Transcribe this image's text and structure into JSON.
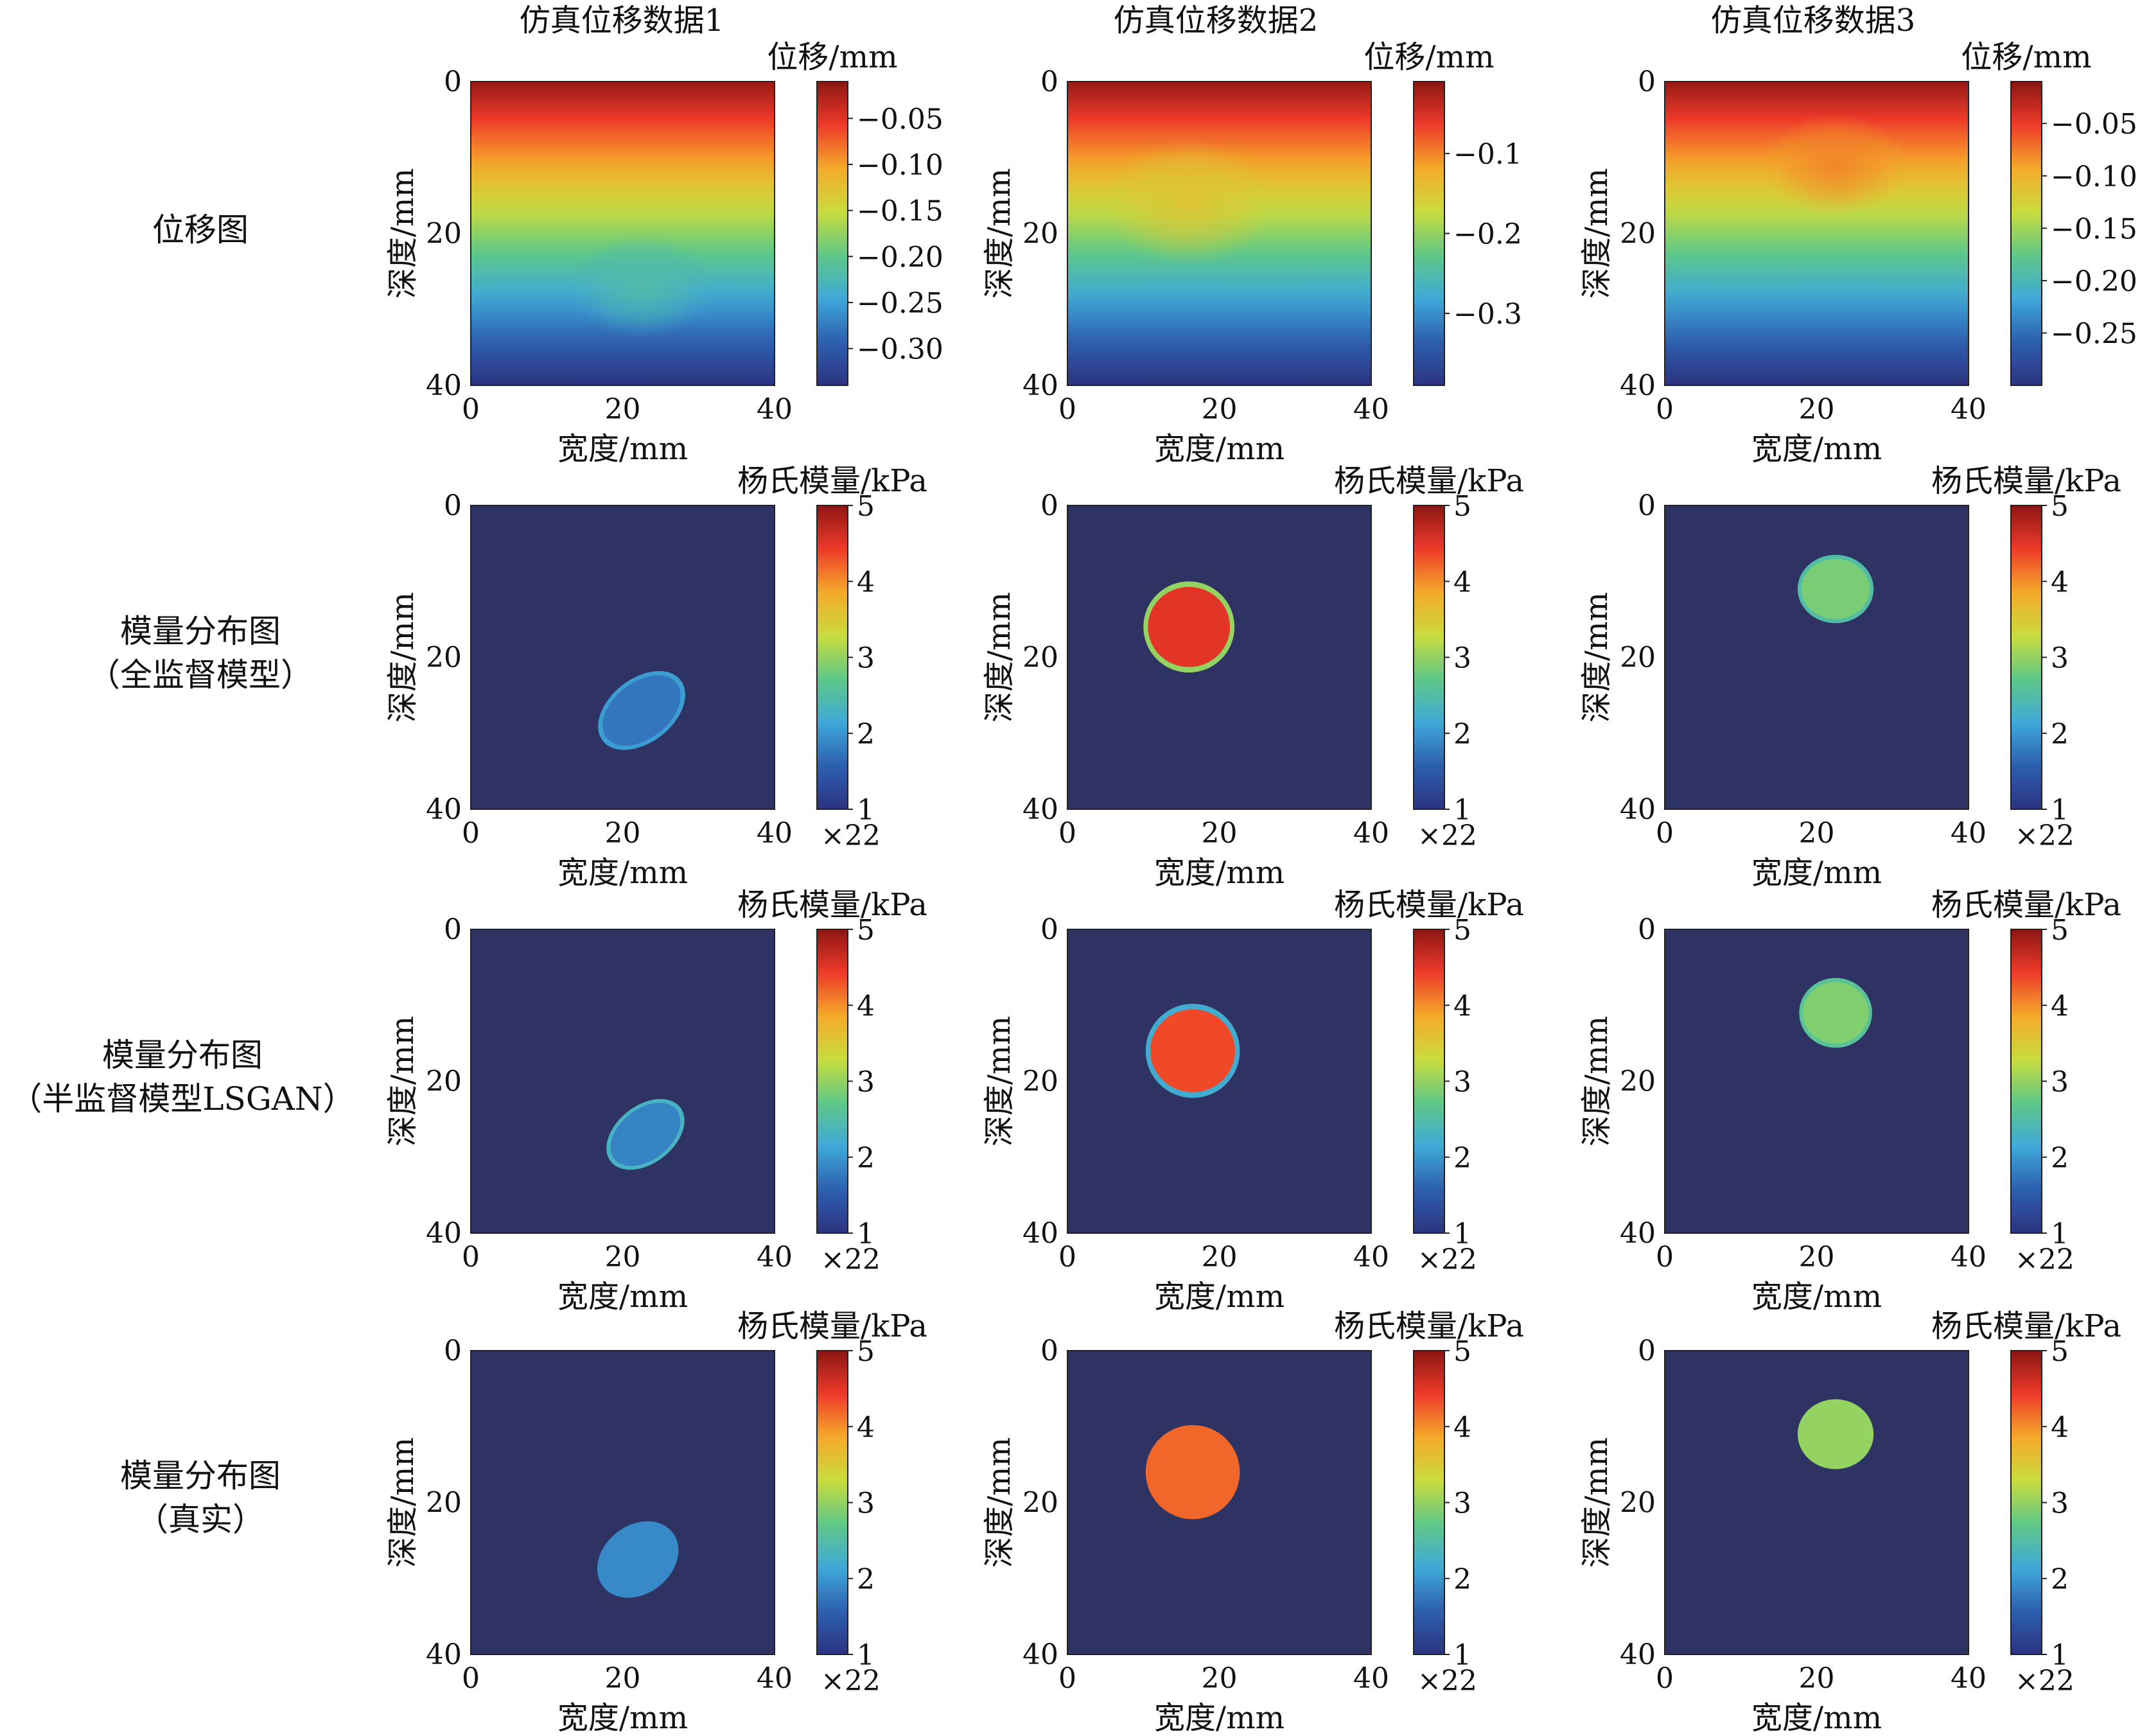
{
  "column_titles": [
    "仿真位移数据1",
    "仿真位移数据2",
    "仿真位移数据3"
  ],
  "row_labels": [
    [
      "位移图"
    ],
    [
      "模量分布图",
      "（全监督模型）"
    ],
    [
      "模量分布图",
      "（半监督模型LSGAN）"
    ],
    [
      "模量分布图",
      "（真实）"
    ]
  ],
  "labels": {
    "xlabel": "宽度/mm",
    "ylabel": "深度/mm",
    "cb_displacement": "位移/mm",
    "cb_modulus": "杨氏模量/kPa",
    "cb_multiplier": "×22"
  },
  "colormap": "jet",
  "colors": {
    "background_dark_blue": "#2f3363",
    "jet_stops": [
      "#2d3380",
      "#2d5fb0",
      "#3fa9d8",
      "#5fc887",
      "#c9dc3d",
      "#f5aa2a",
      "#ee3a2a",
      "#8b1512"
    ]
  },
  "chart_data": [
    {
      "id": "r1c1",
      "type": "heatmap",
      "kind": "displacement",
      "title": "仿真位移数据1",
      "xlabel": "宽度/mm",
      "ylabel": "深度/mm",
      "xlim": [
        0,
        40
      ],
      "ylim": [
        40,
        0
      ],
      "xticks": [
        0,
        20,
        40
      ],
      "yticks": [
        0,
        20,
        40
      ],
      "colorbar": {
        "label": "位移/mm",
        "range": [
          -0.34,
          -0.01
        ],
        "ticks": [
          "−0.05",
          "−0.10",
          "−0.15",
          "−0.20",
          "−0.25",
          "−0.30"
        ],
        "tick_values": [
          -0.05,
          -0.1,
          -0.15,
          -0.2,
          -0.25,
          -0.3
        ]
      },
      "inclusion": {
        "center_x_mm": 22.5,
        "center_y_mm": 27,
        "radius_mm": 5
      },
      "description_values": {
        "top": -0.01,
        "bottom": -0.34
      }
    },
    {
      "id": "r1c2",
      "type": "heatmap",
      "kind": "displacement",
      "title": "仿真位移数据2",
      "xlabel": "宽度/mm",
      "ylabel": "深度/mm",
      "xlim": [
        0,
        40
      ],
      "ylim": [
        40,
        0
      ],
      "xticks": [
        0,
        20,
        40
      ],
      "yticks": [
        0,
        20,
        40
      ],
      "colorbar": {
        "label": "位移/mm",
        "range": [
          -0.39,
          -0.01
        ],
        "ticks": [
          "−0.1",
          "−0.2",
          "−0.3"
        ],
        "tick_values": [
          -0.1,
          -0.2,
          -0.3
        ]
      },
      "inclusion": {
        "center_x_mm": 16,
        "center_y_mm": 16,
        "radius_mm": 6
      },
      "description_values": {
        "top": -0.01,
        "bottom": -0.39
      }
    },
    {
      "id": "r1c3",
      "type": "heatmap",
      "kind": "displacement",
      "title": "仿真位移数据3",
      "xlabel": "宽度/mm",
      "ylabel": "深度/mm",
      "xlim": [
        0,
        40
      ],
      "ylim": [
        40,
        0
      ],
      "xticks": [
        0,
        20,
        40
      ],
      "yticks": [
        0,
        20,
        40
      ],
      "colorbar": {
        "label": "位移/mm",
        "range": [
          -0.3,
          -0.01
        ],
        "ticks": [
          "−0.05",
          "−0.10",
          "−0.15",
          "−0.20",
          "−0.25"
        ],
        "tick_values": [
          -0.05,
          -0.1,
          -0.15,
          -0.2,
          -0.25
        ]
      },
      "inclusion": {
        "center_x_mm": 22.5,
        "center_y_mm": 11,
        "radius_mm": 5
      },
      "description_values": {
        "top": -0.01,
        "bottom": -0.3
      }
    },
    {
      "id": "r2c1",
      "type": "heatmap",
      "kind": "modulus",
      "xlabel": "宽度/mm",
      "ylabel": "深度/mm",
      "xlim": [
        0,
        40
      ],
      "ylim": [
        40,
        0
      ],
      "xticks": [
        0,
        20,
        40
      ],
      "yticks": [
        0,
        20,
        40
      ],
      "colorbar": {
        "label": "杨氏模量/kPa",
        "range": [
          1,
          5
        ],
        "ticks": [
          "5",
          "4",
          "3",
          "2",
          "1"
        ],
        "tick_values": [
          5,
          4,
          3,
          2,
          1
        ],
        "multiplier": "×22"
      },
      "background_value": 1,
      "inclusion": {
        "shape": "ellipse",
        "center_x_mm": 22.5,
        "center_y_mm": 27,
        "rx_mm": 6.5,
        "ry_mm": 4.2,
        "rotation_deg": -38,
        "value": 1.75,
        "edge_value": 2.05
      }
    },
    {
      "id": "r2c2",
      "type": "heatmap",
      "kind": "modulus",
      "xlabel": "宽度/mm",
      "ylabel": "深度/mm",
      "xlim": [
        0,
        40
      ],
      "ylim": [
        40,
        0
      ],
      "xticks": [
        0,
        20,
        40
      ],
      "yticks": [
        0,
        20,
        40
      ],
      "colorbar": {
        "label": "杨氏模量/kPa",
        "range": [
          1,
          5
        ],
        "ticks": [
          "5",
          "4",
          "3",
          "2",
          "1"
        ],
        "tick_values": [
          5,
          4,
          3,
          2,
          1
        ],
        "multiplier": "×22"
      },
      "background_value": 1,
      "inclusion": {
        "shape": "ellipse",
        "center_x_mm": 16,
        "center_y_mm": 16,
        "rx_mm": 6,
        "ry_mm": 6,
        "rotation_deg": 0,
        "value": 4.5,
        "edge_value": 3.0
      }
    },
    {
      "id": "r2c3",
      "type": "heatmap",
      "kind": "modulus",
      "xlabel": "宽度/mm",
      "ylabel": "深度/mm",
      "xlim": [
        0,
        40
      ],
      "ylim": [
        40,
        0
      ],
      "xticks": [
        0,
        20,
        40
      ],
      "yticks": [
        0,
        20,
        40
      ],
      "colorbar": {
        "label": "杨氏模量/kPa",
        "range": [
          1,
          5
        ],
        "ticks": [
          "5",
          "4",
          "3",
          "2",
          "1"
        ],
        "tick_values": [
          5,
          4,
          3,
          2,
          1
        ],
        "multiplier": "×22"
      },
      "background_value": 1,
      "inclusion": {
        "shape": "ellipse",
        "center_x_mm": 22.5,
        "center_y_mm": 11,
        "rx_mm": 5,
        "ry_mm": 4.5,
        "rotation_deg": 0,
        "value": 2.85,
        "edge_value": 2.5
      }
    },
    {
      "id": "r3c1",
      "type": "heatmap",
      "kind": "modulus",
      "xlabel": "宽度/mm",
      "ylabel": "深度/mm",
      "xlim": [
        0,
        40
      ],
      "ylim": [
        40,
        0
      ],
      "xticks": [
        0,
        20,
        40
      ],
      "yticks": [
        0,
        20,
        40
      ],
      "colorbar": {
        "label": "杨氏模量/kPa",
        "range": [
          1,
          5
        ],
        "ticks": [
          "5",
          "4",
          "3",
          "2",
          "1"
        ],
        "tick_values": [
          5,
          4,
          3,
          2,
          1
        ],
        "multiplier": "×22"
      },
      "background_value": 1,
      "inclusion": {
        "shape": "ellipse",
        "center_x_mm": 23,
        "center_y_mm": 27,
        "rx_mm": 5.8,
        "ry_mm": 3.8,
        "rotation_deg": -38,
        "value": 1.85,
        "edge_value": 2.3
      }
    },
    {
      "id": "r3c2",
      "type": "heatmap",
      "kind": "modulus",
      "xlabel": "宽度/mm",
      "ylabel": "深度/mm",
      "xlim": [
        0,
        40
      ],
      "ylim": [
        40,
        0
      ],
      "xticks": [
        0,
        20,
        40
      ],
      "yticks": [
        0,
        20,
        40
      ],
      "colorbar": {
        "label": "杨氏模量/kPa",
        "range": [
          1,
          5
        ],
        "ticks": [
          "5",
          "4",
          "3",
          "2",
          "1"
        ],
        "tick_values": [
          5,
          4,
          3,
          2,
          1
        ],
        "multiplier": "×22"
      },
      "background_value": 1,
      "inclusion": {
        "shape": "ellipse",
        "center_x_mm": 16.5,
        "center_y_mm": 16,
        "rx_mm": 6.2,
        "ry_mm": 6.2,
        "rotation_deg": 0,
        "value": 4.35,
        "edge_value": 2.2
      }
    },
    {
      "id": "r3c3",
      "type": "heatmap",
      "kind": "modulus",
      "xlabel": "宽度/mm",
      "ylabel": "深度/mm",
      "xlim": [
        0,
        40
      ],
      "ylim": [
        40,
        0
      ],
      "xticks": [
        0,
        20,
        40
      ],
      "yticks": [
        0,
        20,
        40
      ],
      "colorbar": {
        "label": "杨氏模量/kPa",
        "range": [
          1,
          5
        ],
        "ticks": [
          "5",
          "4",
          "3",
          "2",
          "1"
        ],
        "tick_values": [
          5,
          4,
          3,
          2,
          1
        ],
        "multiplier": "×22"
      },
      "background_value": 1,
      "inclusion": {
        "shape": "ellipse",
        "center_x_mm": 22.5,
        "center_y_mm": 11,
        "rx_mm": 4.8,
        "ry_mm": 4.6,
        "rotation_deg": 0,
        "value": 2.9,
        "edge_value": 2.6
      }
    },
    {
      "id": "r4c1",
      "type": "heatmap",
      "kind": "modulus",
      "xlabel": "宽度/mm",
      "ylabel": "深度/mm",
      "xlim": [
        0,
        40
      ],
      "ylim": [
        40,
        0
      ],
      "xticks": [
        0,
        20,
        40
      ],
      "yticks": [
        0,
        20,
        40
      ],
      "colorbar": {
        "label": "杨氏模量/kPa",
        "range": [
          1,
          5
        ],
        "ticks": [
          "5",
          "4",
          "3",
          "2",
          "1"
        ],
        "tick_values": [
          5,
          4,
          3,
          2,
          1
        ],
        "multiplier": "×22"
      },
      "background_value": 1,
      "inclusion": {
        "shape": "ellipse",
        "center_x_mm": 22,
        "center_y_mm": 27.5,
        "rx_mm": 5.8,
        "ry_mm": 4.5,
        "rotation_deg": -38,
        "value": 1.9,
        "edge_value": 1.9
      }
    },
    {
      "id": "r4c2",
      "type": "heatmap",
      "kind": "modulus",
      "xlabel": "宽度/mm",
      "ylabel": "深度/mm",
      "xlim": [
        0,
        40
      ],
      "ylim": [
        40,
        0
      ],
      "xticks": [
        0,
        20,
        40
      ],
      "yticks": [
        0,
        20,
        40
      ],
      "colorbar": {
        "label": "杨氏模量/kPa",
        "range": [
          1,
          5
        ],
        "ticks": [
          "5",
          "4",
          "3",
          "2",
          "1"
        ],
        "tick_values": [
          5,
          4,
          3,
          2,
          1
        ],
        "multiplier": "×22"
      },
      "background_value": 1,
      "inclusion": {
        "shape": "ellipse",
        "center_x_mm": 16.5,
        "center_y_mm": 16,
        "rx_mm": 6.2,
        "ry_mm": 6.2,
        "rotation_deg": 0,
        "value": 4.2,
        "edge_value": 4.2
      }
    },
    {
      "id": "r4c3",
      "type": "heatmap",
      "kind": "modulus",
      "xlabel": "宽度/mm",
      "ylabel": "深度/mm",
      "xlim": [
        0,
        40
      ],
      "ylim": [
        40,
        0
      ],
      "xticks": [
        0,
        20,
        40
      ],
      "yticks": [
        0,
        20,
        40
      ],
      "colorbar": {
        "label": "杨氏模量/kPa",
        "range": [
          1,
          5
        ],
        "ticks": [
          "5",
          "4",
          "3",
          "2",
          "1"
        ],
        "tick_values": [
          5,
          4,
          3,
          2,
          1
        ],
        "multiplier": "×22"
      },
      "background_value": 1,
      "inclusion": {
        "shape": "ellipse",
        "center_x_mm": 22.5,
        "center_y_mm": 11,
        "rx_mm": 5,
        "ry_mm": 4.6,
        "rotation_deg": 0,
        "value": 3.0,
        "edge_value": 3.0
      }
    }
  ]
}
